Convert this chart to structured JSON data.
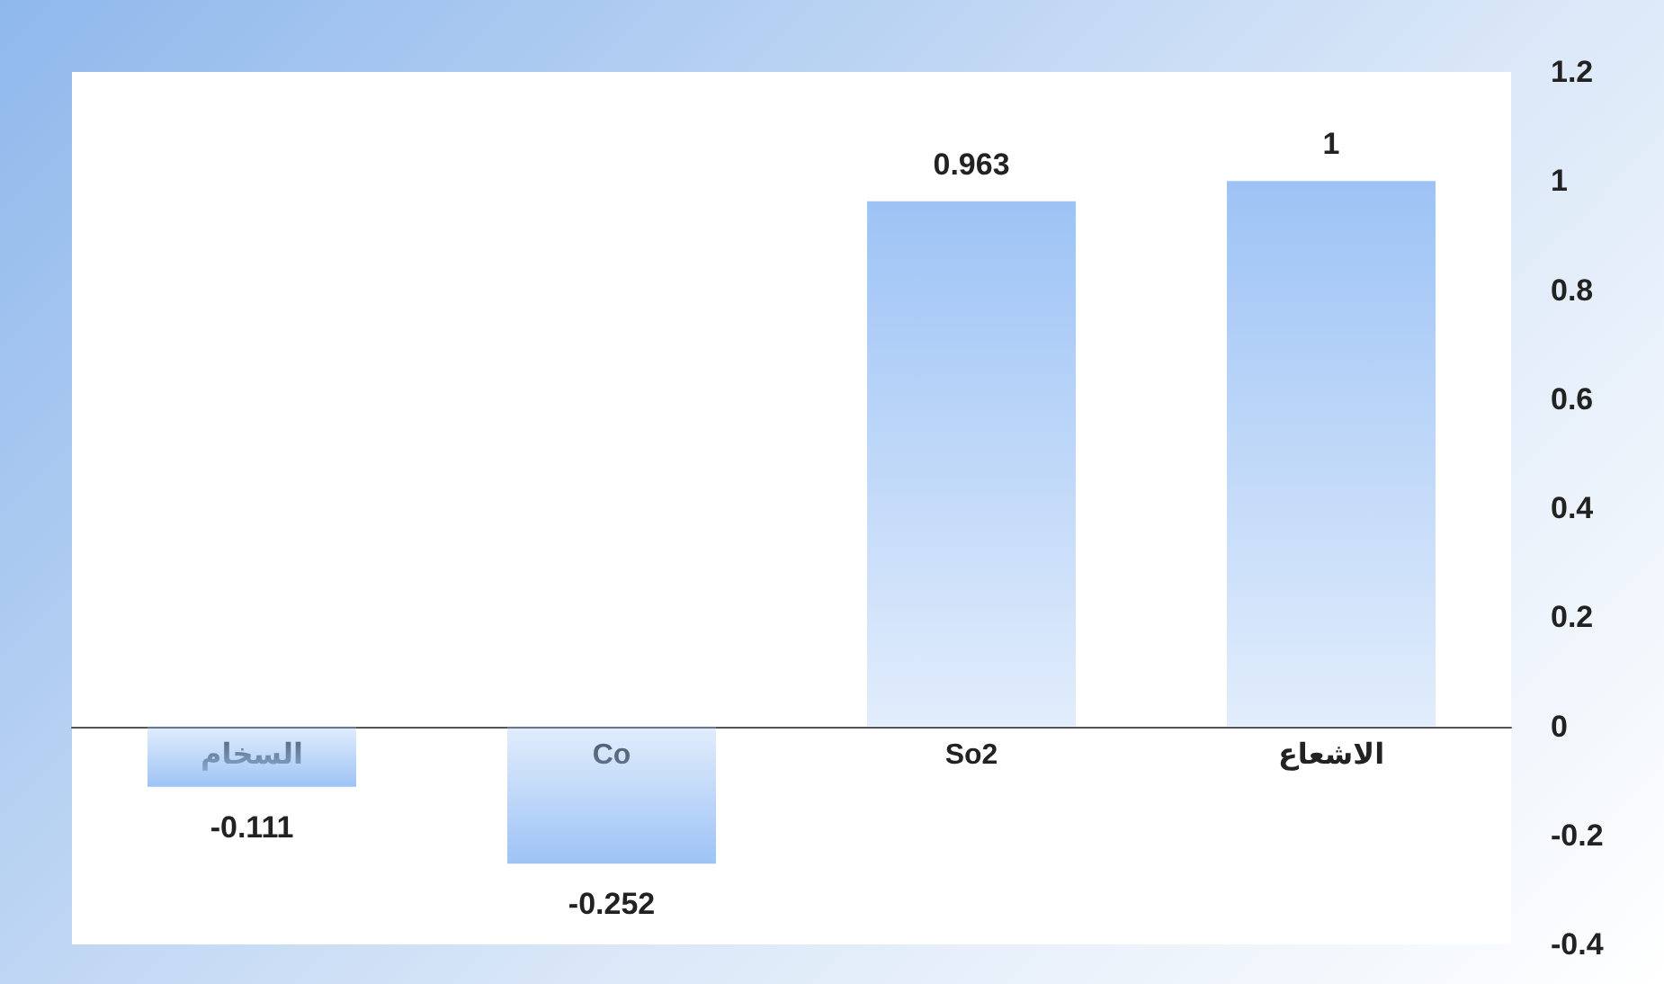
{
  "chart_data": {
    "type": "bar",
    "categories": [
      "السخام",
      "Co",
      "So2",
      "الاشعاع"
    ],
    "values": [
      -0.111,
      -0.252,
      0.963,
      1
    ],
    "color": "#9dc3f5",
    "ylim": [
      -0.4,
      1.2
    ],
    "yticks": [
      -0.4,
      -0.2,
      0,
      0.2,
      0.4,
      0.6,
      0.8,
      1,
      1.2
    ],
    "data_labels": true
  }
}
